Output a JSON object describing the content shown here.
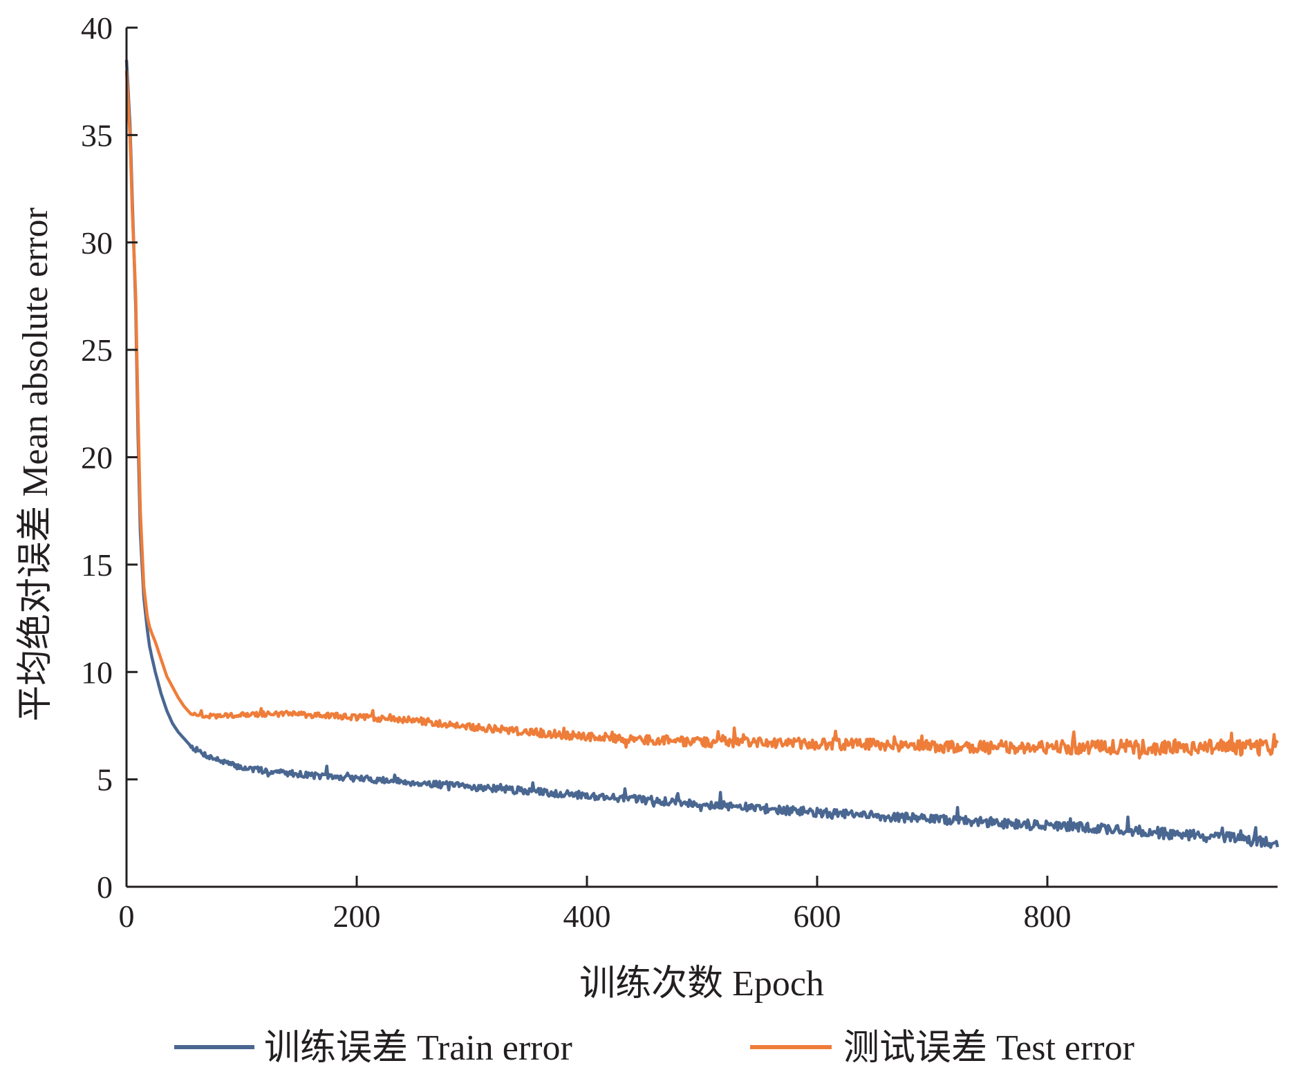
{
  "chart_data": {
    "type": "line",
    "xlabel": "训练次数  Epoch",
    "ylabel": "平均绝对误差  Mean absolute error",
    "xlim": [
      0,
      1000
    ],
    "ylim": [
      0,
      40
    ],
    "x_ticks": [
      0,
      200,
      400,
      600,
      800
    ],
    "y_ticks": [
      0,
      5,
      10,
      15,
      20,
      25,
      30,
      35,
      40
    ],
    "grid": false,
    "legend_position": "bottom",
    "series": [
      {
        "name": "训练误差  Train error",
        "color": "#4a6791",
        "x": [
          0,
          3,
          5,
          8,
          10,
          12,
          15,
          18,
          20,
          22,
          25,
          30,
          35,
          40,
          45,
          50,
          55,
          60,
          70,
          80,
          90,
          100,
          120,
          140,
          160,
          180,
          200,
          250,
          300,
          350,
          400,
          450,
          500,
          550,
          600,
          650,
          700,
          750,
          800,
          850,
          900,
          950,
          1000
        ],
        "y": [
          38.5,
          35.5,
          32.0,
          27.0,
          21.0,
          16.5,
          13.5,
          12.0,
          11.2,
          10.7,
          10.0,
          9.0,
          8.2,
          7.6,
          7.2,
          6.9,
          6.6,
          6.4,
          6.1,
          5.9,
          5.7,
          5.55,
          5.4,
          5.3,
          5.2,
          5.1,
          5.05,
          4.85,
          4.65,
          4.45,
          4.25,
          4.05,
          3.85,
          3.65,
          3.45,
          3.3,
          3.15,
          3.0,
          2.85,
          2.7,
          2.5,
          2.3,
          2.05
        ]
      },
      {
        "name": "测试误差  Test error",
        "color": "#ee7d3a",
        "x": [
          0,
          3,
          5,
          8,
          10,
          12,
          15,
          18,
          20,
          22,
          25,
          30,
          35,
          40,
          45,
          50,
          55,
          60,
          70,
          80,
          100,
          120,
          140,
          160,
          180,
          200,
          250,
          300,
          350,
          400,
          450,
          500,
          550,
          600,
          650,
          700,
          750,
          800,
          850,
          900,
          950,
          1000
        ],
        "y": [
          38.0,
          35.0,
          31.5,
          27.5,
          22.0,
          17.5,
          14.0,
          12.6,
          12.1,
          11.8,
          11.4,
          10.6,
          9.8,
          9.3,
          8.8,
          8.4,
          8.1,
          8.0,
          7.95,
          7.95,
          8.0,
          8.05,
          8.05,
          8.0,
          7.95,
          7.9,
          7.75,
          7.45,
          7.2,
          7.0,
          6.85,
          6.75,
          6.7,
          6.65,
          6.6,
          6.55,
          6.5,
          6.5,
          6.5,
          6.5,
          6.5,
          6.45
        ]
      }
    ]
  }
}
